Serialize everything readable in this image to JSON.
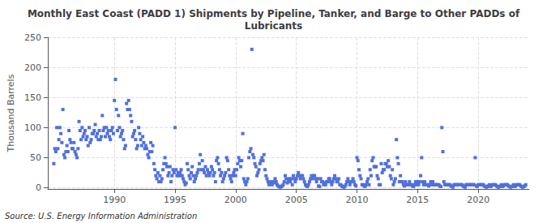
{
  "chart_data": {
    "type": "scatter",
    "title": "Monthly East Coast (PADD 1) Shipments by Pipeline, Tanker, and Barge to Other PADDs of\nLubricants",
    "y_label": "Thousand Barrels",
    "annotation": "Source: U.S. Energy Information Administration",
    "marker": "square",
    "grid": true,
    "xlim": [
      1984.5,
      2024.2
    ],
    "xticks": [
      1990,
      1995,
      2000,
      2005,
      2010,
      2015,
      2020
    ],
    "ylim": [
      -2,
      250
    ],
    "yticks": [
      0,
      50,
      100,
      150,
      200,
      250
    ],
    "x": [
      1985,
      1985.0833333333333,
      1985.1666666666667,
      1985.25,
      1985.3333333333333,
      1985.4166666666667,
      1985.5,
      1985.5833333333333,
      1985.6666666666667,
      1985.75,
      1985.8333333333333,
      1985.9166666666667,
      1986,
      1986.0833333333333,
      1986.1666666666667,
      1986.25,
      1986.3333333333333,
      1986.4166666666667,
      1986.5,
      1986.5833333333333,
      1986.6666666666667,
      1986.75,
      1986.8333333333333,
      1986.9166666666667,
      1987,
      1987.0833333333333,
      1987.1666666666667,
      1987.25,
      1987.3333333333333,
      1987.4166666666667,
      1987.5,
      1987.5833333333333,
      1987.6666666666667,
      1987.75,
      1987.8333333333333,
      1987.9166666666667,
      1988,
      1988.0833333333333,
      1988.1666666666667,
      1988.25,
      1988.3333333333333,
      1988.4166666666667,
      1988.5,
      1988.5833333333333,
      1988.6666666666667,
      1988.75,
      1988.8333333333333,
      1988.9166666666667,
      1989,
      1989.0833333333333,
      1989.1666666666667,
      1989.25,
      1989.3333333333333,
      1989.4166666666667,
      1989.5,
      1989.5833333333333,
      1989.6666666666667,
      1989.75,
      1989.8333333333333,
      1989.9166666666667,
      1990,
      1990.0833333333333,
      1990.1666666666667,
      1990.25,
      1990.3333333333333,
      1990.4166666666667,
      1990.5,
      1990.5833333333333,
      1990.6666666666667,
      1990.75,
      1990.8333333333333,
      1990.9166666666667,
      1991,
      1991.0833333333333,
      1991.1666666666667,
      1991.25,
      1991.3333333333333,
      1991.4166666666667,
      1991.5,
      1991.5833333333333,
      1991.6666666666667,
      1991.75,
      1991.8333333333333,
      1991.9166666666667,
      1992,
      1992.0833333333333,
      1992.1666666666667,
      1992.25,
      1992.3333333333333,
      1992.4166666666667,
      1992.5,
      1992.5833333333333,
      1992.6666666666667,
      1992.75,
      1992.8333333333333,
      1992.9166666666667,
      1993,
      1993.0833333333333,
      1993.1666666666667,
      1993.25,
      1993.3333333333333,
      1993.4166666666667,
      1993.5,
      1993.5833333333333,
      1993.6666666666667,
      1993.75,
      1993.8333333333333,
      1993.9166666666667,
      1994,
      1994.0833333333333,
      1994.1666666666667,
      1994.25,
      1994.3333333333333,
      1994.4166666666667,
      1994.5,
      1994.5833333333333,
      1994.6666666666667,
      1994.75,
      1994.8333333333333,
      1994.9166666666667,
      1995,
      1995.0833333333333,
      1995.1666666666667,
      1995.25,
      1995.3333333333333,
      1995.4166666666667,
      1995.5,
      1995.5833333333333,
      1995.6666666666667,
      1995.75,
      1995.8333333333333,
      1995.9166666666667,
      1996,
      1996.0833333333333,
      1996.1666666666667,
      1996.25,
      1996.3333333333333,
      1996.4166666666667,
      1996.5,
      1996.5833333333333,
      1996.6666666666667,
      1996.75,
      1996.8333333333333,
      1996.9166666666667,
      1997,
      1997.0833333333333,
      1997.1666666666667,
      1997.25,
      1997.3333333333333,
      1997.4166666666667,
      1997.5,
      1997.5833333333333,
      1997.6666666666667,
      1997.75,
      1997.8333333333333,
      1997.9166666666667,
      1998,
      1998.0833333333333,
      1998.1666666666667,
      1998.25,
      1998.3333333333333,
      1998.4166666666667,
      1998.5,
      1998.5833333333333,
      1998.6666666666667,
      1998.75,
      1998.8333333333333,
      1998.9166666666667,
      1999,
      1999.0833333333333,
      1999.1666666666667,
      1999.25,
      1999.3333333333333,
      1999.4166666666667,
      1999.5,
      1999.5833333333333,
      1999.6666666666667,
      1999.75,
      1999.8333333333333,
      1999.9166666666667,
      2000,
      2000.0833333333333,
      2000.1666666666667,
      2000.25,
      2000.3333333333333,
      2000.4166666666667,
      2000.5,
      2000.5833333333333,
      2000.6666666666667,
      2000.75,
      2000.8333333333333,
      2000.9166666666667,
      2001,
      2001.0833333333333,
      2001.1666666666667,
      2001.25,
      2001.3333333333333,
      2001.4166666666667,
      2001.5,
      2001.5833333333333,
      2001.6666666666667,
      2001.75,
      2001.8333333333333,
      2001.9166666666667,
      2002,
      2002.0833333333333,
      2002.1666666666667,
      2002.25,
      2002.3333333333333,
      2002.4166666666667,
      2002.5,
      2002.5833333333333,
      2002.6666666666667,
      2002.75,
      2002.8333333333333,
      2002.9166666666667,
      2003,
      2003.0833333333333,
      2003.1666666666667,
      2003.25,
      2003.3333333333333,
      2003.4166666666667,
      2003.5,
      2003.5833333333333,
      2003.6666666666667,
      2003.75,
      2003.8333333333333,
      2003.9166666666667,
      2004,
      2004.0833333333333,
      2004.1666666666667,
      2004.25,
      2004.3333333333333,
      2004.4166666666667,
      2004.5,
      2004.5833333333333,
      2004.6666666666667,
      2004.75,
      2004.8333333333333,
      2004.9166666666667,
      2005,
      2005.0833333333333,
      2005.1666666666667,
      2005.25,
      2005.3333333333333,
      2005.4166666666667,
      2005.5,
      2005.5833333333333,
      2005.6666666666667,
      2005.75,
      2005.8333333333333,
      2005.9166666666667,
      2006,
      2006.0833333333333,
      2006.1666666666667,
      2006.25,
      2006.3333333333333,
      2006.4166666666667,
      2006.5,
      2006.5833333333333,
      2006.6666666666667,
      2006.75,
      2006.8333333333333,
      2006.9166666666667,
      2007,
      2007.0833333333333,
      2007.1666666666667,
      2007.25,
      2007.3333333333333,
      2007.4166666666667,
      2007.5,
      2007.5833333333333,
      2007.6666666666667,
      2007.75,
      2007.8333333333333,
      2007.9166666666667,
      2008,
      2008.0833333333333,
      2008.1666666666667,
      2008.25,
      2008.3333333333333,
      2008.4166666666667,
      2008.5,
      2008.5833333333333,
      2008.6666666666667,
      2008.75,
      2008.8333333333333,
      2008.9166666666667,
      2009,
      2009.0833333333333,
      2009.1666666666667,
      2009.25,
      2009.3333333333333,
      2009.4166666666667,
      2009.5,
      2009.5833333333333,
      2009.6666666666667,
      2009.75,
      2009.8333333333333,
      2009.9166666666667,
      2010,
      2010.0833333333333,
      2010.1666666666667,
      2010.25,
      2010.3333333333333,
      2010.4166666666667,
      2010.5,
      2010.5833333333333,
      2010.6666666666667,
      2010.75,
      2010.8333333333333,
      2010.9166666666667,
      2011,
      2011.0833333333333,
      2011.1666666666667,
      2011.25,
      2011.3333333333333,
      2011.4166666666667,
      2011.5,
      2011.5833333333333,
      2011.6666666666667,
      2011.75,
      2011.8333333333333,
      2011.9166666666667,
      2012,
      2012.0833333333333,
      2012.1666666666667,
      2012.25,
      2012.3333333333333,
      2012.4166666666667,
      2012.5,
      2012.5833333333333,
      2012.6666666666667,
      2012.75,
      2012.8333333333333,
      2012.9166666666667,
      2013,
      2013.0833333333333,
      2013.1666666666667,
      2013.25,
      2013.3333333333333,
      2013.4166666666667,
      2013.5,
      2013.5833333333333,
      2013.6666666666667,
      2013.75,
      2013.8333333333333,
      2013.9166666666667,
      2014,
      2014.0833333333333,
      2014.1666666666667,
      2014.25,
      2014.3333333333333,
      2014.4166666666667,
      2014.5,
      2014.5833333333333,
      2014.6666666666667,
      2014.75,
      2014.8333333333333,
      2014.9166666666667,
      2015,
      2015.0833333333333,
      2015.1666666666667,
      2015.25,
      2015.3333333333333,
      2015.4166666666667,
      2015.5,
      2015.5833333333333,
      2015.6666666666667,
      2015.75,
      2015.8333333333333,
      2015.9166666666667,
      2016,
      2016.0833333333333,
      2016.1666666666667,
      2016.25,
      2016.3333333333333,
      2016.4166666666667,
      2016.5,
      2016.5833333333333,
      2016.6666666666667,
      2016.75,
      2016.8333333333333,
      2016.9166666666667,
      2017,
      2017.0833333333333,
      2017.1666666666667,
      2017.25,
      2017.3333333333333,
      2017.4166666666667,
      2017.5,
      2017.5833333333333,
      2017.6666666666667,
      2017.75,
      2017.8333333333333,
      2017.9166666666667,
      2018,
      2018.0833333333333,
      2018.1666666666667,
      2018.25,
      2018.3333333333333,
      2018.4166666666667,
      2018.5,
      2018.5833333333333,
      2018.6666666666667,
      2018.75,
      2018.8333333333333,
      2018.9166666666667,
      2019,
      2019.0833333333333,
      2019.1666666666667,
      2019.25,
      2019.3333333333333,
      2019.4166666666667,
      2019.5,
      2019.5833333333333,
      2019.6666666666667,
      2019.75,
      2019.8333333333333,
      2019.9166666666667,
      2020,
      2020.0833333333333,
      2020.1666666666667,
      2020.25,
      2020.3333333333333,
      2020.4166666666667,
      2020.5,
      2020.5833333333333,
      2020.6666666666667,
      2020.75,
      2020.8333333333333,
      2020.9166666666667,
      2021,
      2021.0833333333333,
      2021.1666666666667,
      2021.25,
      2021.3333333333333,
      2021.4166666666667,
      2021.5,
      2021.5833333333333,
      2021.6666666666667,
      2021.75,
      2021.8333333333333,
      2021.9166666666667,
      2022,
      2022.0833333333333,
      2022.1666666666667,
      2022.25,
      2022.3333333333333,
      2022.4166666666667,
      2022.5,
      2022.5833333333333,
      2022.6666666666667,
      2022.75,
      2022.8333333333333,
      2022.9166666666667,
      2023,
      2023.0833333333333,
      2023.1666666666667,
      2023.25,
      2023.3333333333333,
      2023.4166666666667,
      2023.5,
      2023.5833333333333,
      2023.6666666666667,
      2023.75,
      2023.8333333333333,
      2023.9166666666667
    ],
    "values": [
      40,
      65,
      60,
      100,
      65,
      80,
      100,
      90,
      75,
      130,
      55,
      50,
      60,
      70,
      60,
      95,
      80,
      75,
      65,
      65,
      75,
      60,
      55,
      50,
      65,
      110,
      95,
      80,
      100,
      85,
      90,
      95,
      80,
      85,
      70,
      100,
      75,
      80,
      90,
      90,
      95,
      105,
      85,
      90,
      80,
      95,
      80,
      85,
      120,
      95,
      100,
      85,
      100,
      90,
      95,
      85,
      80,
      95,
      100,
      90,
      145,
      180,
      130,
      95,
      120,
      100,
      85,
      90,
      95,
      80,
      65,
      70,
      140,
      130,
      145,
      130,
      120,
      110,
      85,
      90,
      95,
      80,
      65,
      70,
      100,
      90,
      80,
      70,
      85,
      75,
      65,
      70,
      65,
      55,
      50,
      60,
      75,
      60,
      70,
      40,
      30,
      20,
      15,
      25,
      10,
      20,
      10,
      15,
      30,
      40,
      50,
      40,
      35,
      20,
      25,
      35,
      10,
      20,
      30,
      25,
      100,
      30,
      20,
      25,
      20,
      25,
      30,
      20,
      15,
      10,
      5,
      8,
      40,
      30,
      20,
      15,
      25,
      35,
      20,
      10,
      15,
      20,
      25,
      30,
      40,
      55,
      30,
      45,
      30,
      25,
      35,
      20,
      30,
      25,
      20,
      25,
      35,
      30,
      20,
      25,
      10,
      45,
      50,
      40,
      30,
      20,
      25,
      10,
      15,
      20,
      25,
      50,
      45,
      30,
      20,
      15,
      10,
      20,
      25,
      30,
      20,
      30,
      40,
      50,
      45,
      35,
      45,
      90,
      15,
      10,
      5,
      10,
      15,
      50,
      60,
      65,
      230,
      55,
      50,
      40,
      35,
      20,
      25,
      30,
      40,
      45,
      50,
      45,
      55,
      30,
      20,
      15,
      10,
      5,
      8,
      10,
      5,
      10,
      8,
      15,
      10,
      5,
      3,
      2,
      1,
      2,
      3,
      5,
      10,
      20,
      15,
      8,
      10,
      15,
      10,
      15,
      5,
      20,
      15,
      10,
      15,
      20,
      25,
      20,
      15,
      20,
      20,
      15,
      10,
      5,
      3,
      2,
      5,
      10,
      15,
      20,
      15,
      20,
      20,
      15,
      10,
      15,
      3,
      2,
      15,
      10,
      10,
      5,
      8,
      5,
      10,
      10,
      15,
      15,
      10,
      5,
      10,
      15,
      20,
      15,
      10,
      10,
      15,
      5,
      5,
      3,
      2,
      1,
      2,
      5,
      10,
      15,
      10,
      5,
      10,
      10,
      15,
      10,
      5,
      3,
      50,
      45,
      30,
      20,
      15,
      5,
      5,
      3,
      2,
      5,
      10,
      15,
      5,
      30,
      20,
      45,
      50,
      35,
      35,
      35,
      20,
      15,
      5,
      5,
      40,
      25,
      30,
      30,
      40,
      40,
      35,
      45,
      35,
      20,
      15,
      30,
      5,
      10,
      15,
      80,
      50,
      40,
      10,
      20,
      10,
      10,
      5,
      3,
      10,
      5,
      5,
      5,
      10,
      5,
      5,
      3,
      2,
      5,
      10,
      5,
      10,
      5,
      10,
      20,
      50,
      10,
      5,
      10,
      5,
      5,
      5,
      3,
      5,
      10,
      5,
      10,
      5,
      5,
      5,
      5,
      5,
      5,
      3,
      2,
      100,
      60,
      10,
      5,
      5,
      5,
      5,
      5,
      5,
      3,
      2,
      1,
      5,
      5,
      5,
      5,
      5,
      5,
      5,
      5,
      5,
      3,
      2,
      1,
      5,
      5,
      5,
      5,
      5,
      5,
      5,
      5,
      5,
      50,
      3,
      2,
      5,
      5,
      5,
      5,
      5,
      5,
      3,
      2,
      1,
      2,
      3,
      5,
      2,
      3,
      5,
      5,
      5,
      5,
      3,
      2,
      1,
      2,
      3,
      5,
      2,
      3,
      5,
      5,
      5,
      5,
      3,
      2,
      1,
      2,
      3,
      5,
      2,
      3,
      5,
      5,
      5,
      5,
      3,
      2,
      1,
      2,
      3,
      5
    ]
  }
}
